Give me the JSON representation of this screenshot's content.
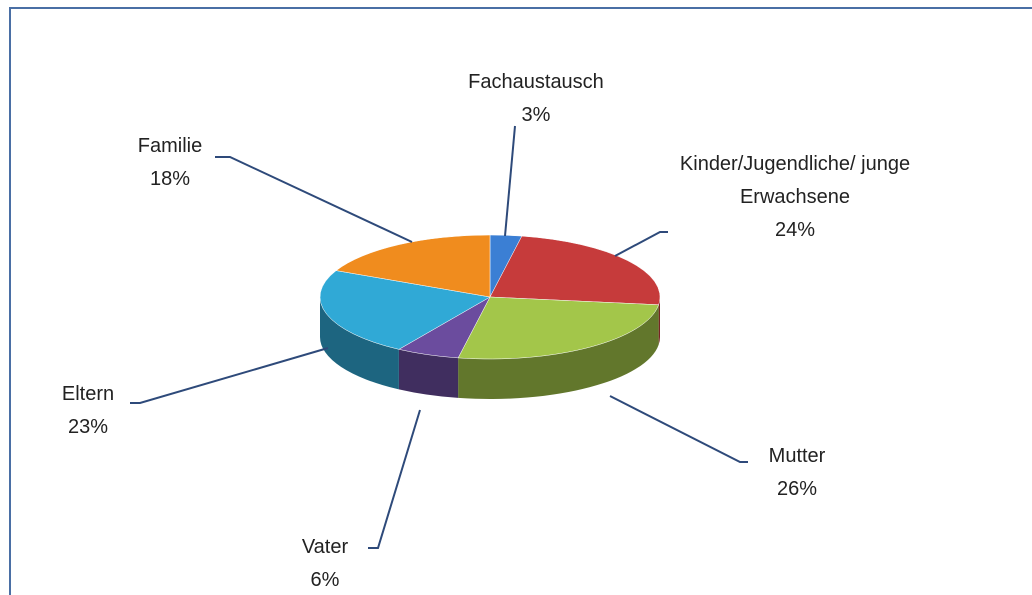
{
  "chart_data": {
    "type": "pie3d",
    "categories": [
      "Fachaustausch",
      "Kinder/Jugendliche/ junge Erwachsene",
      "Mutter",
      "Vater",
      "Eltern",
      "Familie"
    ],
    "values": [
      3,
      24,
      26,
      6,
      23,
      18
    ],
    "value_labels": [
      "3%",
      "24%",
      "26%",
      "6%",
      "23%",
      "18%"
    ],
    "colors": [
      "#3b7fd4",
      "#c63b3b",
      "#a3c64a",
      "#6b4c9e",
      "#30a9d6",
      "#f08c1e"
    ]
  }
}
